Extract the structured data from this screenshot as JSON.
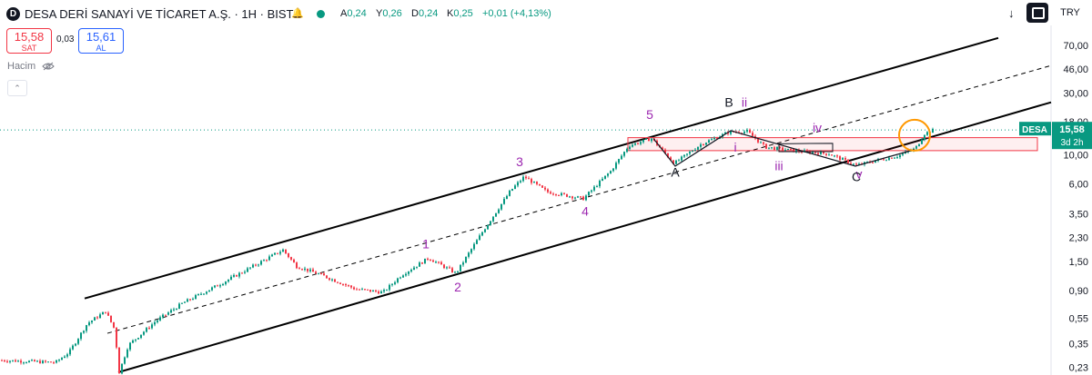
{
  "header": {
    "logo_letter": "D",
    "title": "DESA DERİ SANAYİ VE TİCARET A.Ş. · 1H · BIST",
    "ohlc": [
      {
        "label": "A",
        "value": "0,24"
      },
      {
        "label": "Y",
        "value": "0,26"
      },
      {
        "label": "D",
        "value": "0,24"
      },
      {
        "label": "K",
        "value": "0,25"
      }
    ],
    "change": "+0,01 (+4,13%)",
    "currency": "TRY"
  },
  "trade": {
    "sell_price": "15,58",
    "sell_label": "SAT",
    "spread": "0,03",
    "buy_price": "15,61",
    "buy_label": "AL"
  },
  "volume_label": "Hacim",
  "colors": {
    "up": "#089981",
    "down": "#f23645",
    "wave_label": "#9c27b0",
    "channel": "#000000",
    "circle": "#ff9800",
    "zone": "#f23645"
  },
  "chart_data": {
    "type": "candlestick",
    "symbol": "DESA",
    "scale": "log",
    "ylim": [
      0.21,
      100
    ],
    "y_ticks": [
      "70,00",
      "46,00",
      "30,00",
      "18,00",
      "10,00",
      "6,00",
      "3,50",
      "2,30",
      "1,50",
      "0,90",
      "0,55",
      "0,35",
      "0,23"
    ],
    "last_price_label": {
      "symbol": "DESA",
      "price": "15,58",
      "countdown": "3d 2h"
    },
    "price_path": [
      [
        0,
        0.26
      ],
      [
        60,
        0.25
      ],
      [
        75,
        0.3
      ],
      [
        95,
        0.5
      ],
      [
        115,
        0.62
      ],
      [
        125,
        0.45
      ],
      [
        130,
        0.21
      ],
      [
        140,
        0.34
      ],
      [
        170,
        0.52
      ],
      [
        200,
        0.72
      ],
      [
        240,
        1.0
      ],
      [
        280,
        1.42
      ],
      [
        310,
        1.85
      ],
      [
        325,
        1.38
      ],
      [
        350,
        1.2
      ],
      [
        390,
        0.92
      ],
      [
        420,
        0.87
      ],
      [
        440,
        1.18
      ],
      [
        470,
        1.6
      ],
      [
        500,
        1.22
      ],
      [
        530,
        2.6
      ],
      [
        560,
        5.3
      ],
      [
        575,
        6.8
      ],
      [
        600,
        5.2
      ],
      [
        640,
        4.6
      ],
      [
        670,
        7.5
      ],
      [
        690,
        11.8
      ],
      [
        715,
        13.4
      ],
      [
        740,
        8.6
      ],
      [
        770,
        12.2
      ],
      [
        800,
        15.0
      ],
      [
        820,
        15.2
      ],
      [
        840,
        11.5
      ],
      [
        870,
        10.8
      ],
      [
        910,
        10.2
      ],
      [
        940,
        8.3
      ],
      [
        960,
        9.0
      ],
      [
        985,
        9.8
      ],
      [
        1005,
        11.2
      ],
      [
        1015,
        14.6
      ],
      [
        1025,
        15.58
      ]
    ],
    "wave_labels": [
      {
        "text": "1",
        "x": 468,
        "y": 1.9,
        "color": "purple"
      },
      {
        "text": "2",
        "x": 503,
        "y": 0.88,
        "color": "purple"
      },
      {
        "text": "3",
        "x": 571,
        "y": 8.2,
        "color": "purple"
      },
      {
        "text": "4",
        "x": 643,
        "y": 3.4,
        "color": "purple"
      },
      {
        "text": "5",
        "x": 714,
        "y": 19.0,
        "color": "purple"
      },
      {
        "text": "A",
        "x": 742,
        "y": 6.8,
        "color": "black"
      },
      {
        "text": "B",
        "x": 801,
        "y": 23.5,
        "color": "black"
      },
      {
        "text": "ii",
        "x": 818,
        "y": 23.5,
        "color": "purple"
      },
      {
        "text": "i",
        "x": 808,
        "y": 10.6,
        "color": "purple"
      },
      {
        "text": "iii",
        "x": 856,
        "y": 7.6,
        "color": "purple"
      },
      {
        "text": "iv",
        "x": 898,
        "y": 15.0,
        "color": "purple"
      },
      {
        "text": "v",
        "x": 944,
        "y": 6.6,
        "color": "purple"
      },
      {
        "text": "C",
        "x": 941,
        "y": 6.3,
        "color": "black"
      }
    ],
    "channel_upper": [
      [
        93,
        0.78
      ],
      [
        1097,
        80.0
      ]
    ],
    "channel_lower": [
      [
        130,
        0.21
      ],
      [
        1155,
        25.5
      ]
    ],
    "channel_mid": [
      [
        118,
        0.42
      ],
      [
        1155,
        49.0
      ]
    ],
    "abc_path": [
      [
        718,
        13.4
      ],
      [
        742,
        8.2
      ],
      [
        803,
        15.4
      ],
      [
        940,
        8.2
      ],
      [
        1005,
        11.0
      ]
    ],
    "wave4_triangle": [
      [
        856,
        12.2
      ],
      [
        915,
        12.3
      ],
      [
        915,
        10.6
      ],
      [
        856,
        10.6
      ]
    ],
    "zone": {
      "x_start": 690,
      "x_end": 1140,
      "y_low": 10.8,
      "y_high": 13.6
    },
    "circle": {
      "x": 1005,
      "y": 14.2
    }
  }
}
